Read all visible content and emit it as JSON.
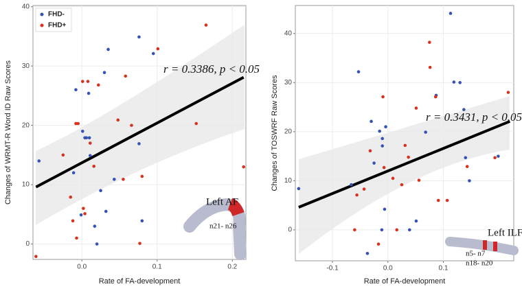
{
  "chart_data": [
    {
      "type": "scatter",
      "xlabel": "Rate of FA-development",
      "ylabel": "Changes of WRMT-R Word ID Raw Scores",
      "xlim": [
        -0.065,
        0.218
      ],
      "ylim": [
        -2.6,
        40.2
      ],
      "xticks": [
        {
          "value": 0,
          "label": "0.0"
        },
        0.1,
        0.2
      ],
      "yticks": [
        0,
        10,
        20,
        30,
        40
      ],
      "grid": true,
      "legend": "top-left",
      "series": [
        {
          "name": "FHD-",
          "color": "#3553b5",
          "x": [
            -0.057,
            -0.011,
            -0.008,
            0.001,
            0.004,
            0.006,
            0.01,
            0.009,
            0.011,
            0.017,
            0.02,
            0.025,
            0.03,
            0.035,
            0.043,
            0.032,
            0.076,
            0.095,
            0.076,
            0.08,
            -0.001
          ],
          "values": [
            14.0,
            12.0,
            26.0,
            19.0,
            17.9,
            17.9,
            17.9,
            25.4,
            14.9,
            3.0,
            0,
            9.0,
            28.9,
            32.8,
            10.9,
            5.5,
            34.9,
            32.1,
            16.9,
            3.9,
            4.9
          ]
        },
        {
          "name": "FHD+",
          "color": "#d8321f",
          "x": [
            -0.061,
            -0.025,
            -0.015,
            -0.012,
            -0.008,
            -0.005,
            -0.007,
            0.001,
            0.002,
            0.004,
            0.008,
            0.011,
            0.016,
            0.022,
            0.048,
            0.055,
            0.058,
            0.066,
            0.077,
            0.08,
            0.101,
            0.152,
            0.165,
            0.215
          ],
          "values": [
            -2.1,
            15.0,
            7.9,
            3.9,
            20.3,
            20.3,
            1.0,
            27.4,
            6.0,
            5.1,
            27.4,
            17.0,
            13.1,
            26.8,
            20.9,
            10.9,
            28.3,
            20.0,
            0.1,
            11.4,
            32.9,
            20.3,
            36.9,
            13.0
          ]
        }
      ],
      "trend": {
        "x": [
          -0.061,
          0.215
        ],
        "values": [
          9.6,
          28.1
        ]
      },
      "annotation": "r = 0.3386, p < 0.05",
      "tract_label": "Left AF",
      "tract_nodes": [
        "n21- n26"
      ]
    },
    {
      "type": "scatter",
      "xlabel": "Rate of FA-development",
      "ylabel": "Changes of TOSWRF Raw Scores",
      "xlim": [
        -0.167,
        0.227
      ],
      "ylim": [
        -6.3,
        45.7
      ],
      "xticks": [
        -0.1,
        {
          "value": 0,
          "label": "0.0"
        },
        0.1
      ],
      "yticks": [
        0,
        10,
        20,
        30,
        40
      ],
      "grid": true,
      "series": [
        {
          "color": "#3553b5",
          "x": [
            -0.161,
            -0.053,
            -0.066,
            -0.03,
            -0.025,
            -0.015,
            -0.037,
            -0.011,
            -0.01,
            -0.01,
            -0.006,
            -0.004,
            0.039,
            0.051,
            0.068,
            0.087,
            0.119,
            0.113,
            0.13,
            0.137,
            0.14,
            0.147,
            0.199
          ],
          "values": [
            8.4,
            32.2,
            9.2,
            22.1,
            13.6,
            20.1,
            -4.8,
            0,
            18.6,
            17.1,
            4.2,
            21.0,
            0,
            1.8,
            19.9,
            27.4,
            30.1,
            44.1,
            30.0,
            24.5,
            14.7,
            10.0,
            15.0
          ]
        },
        {
          "color": "#d8321f",
          "x": [
            -0.06,
            -0.056,
            -0.043,
            -0.032,
            -0.017,
            -0.009,
            -0.007,
            0.009,
            0.025,
            0.031,
            0.037,
            0.051,
            0.056,
            0.075,
            0.076,
            0.086,
            0.091,
            0.107,
            0.143,
            0.217,
            0.193,
            0.016
          ],
          "values": [
            0,
            7.1,
            8.3,
            16.1,
            -2.9,
            27.1,
            12.7,
            10.5,
            9.2,
            17.2,
            14.8,
            24.8,
            10.1,
            38.2,
            33.1,
            27.1,
            6.0,
            6.0,
            12.9,
            28.0,
            14.7,
            0
          ]
        }
      ],
      "trend": {
        "x": [
          -0.161,
          0.22
        ],
        "values": [
          4.6,
          22.1
        ]
      },
      "annotation": "r = 0.3431, p < 0.05",
      "tract_label": "Left ILF",
      "tract_nodes": [
        "n5- n7",
        "n18- n20"
      ]
    }
  ]
}
